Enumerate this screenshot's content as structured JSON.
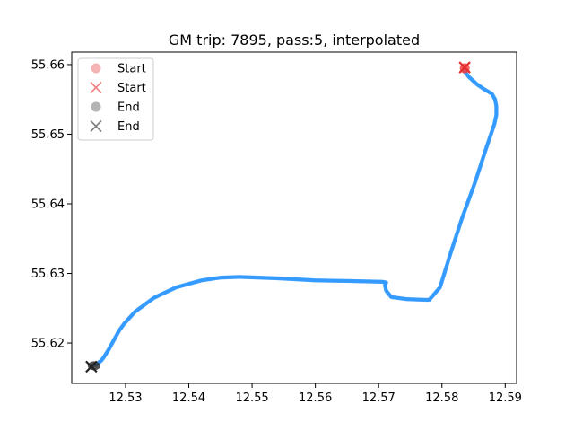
{
  "chart_data": {
    "type": "scatter",
    "title": "GM trip: 7895, pass:5, interpolated",
    "xlabel": "",
    "ylabel": "",
    "xlim": [
      12.5215,
      12.5918
    ],
    "ylim": [
      55.6142,
      55.6618
    ],
    "x_ticks": [
      "12.53",
      "12.54",
      "12.55",
      "12.56",
      "12.57",
      "12.58",
      "12.59"
    ],
    "y_ticks": [
      "55.62",
      "55.63",
      "55.64",
      "55.65",
      "55.66"
    ],
    "grid": false,
    "legend_position": "top-left",
    "legend": [
      {
        "label": "Start",
        "marker": "circle",
        "color": "#f08080"
      },
      {
        "label": "Start",
        "marker": "x",
        "color": "#f08080"
      },
      {
        "label": "End",
        "marker": "circle",
        "color": "#808080"
      },
      {
        "label": "End",
        "marker": "x",
        "color": "#808080"
      }
    ],
    "colors": {
      "track": "#3399ff",
      "track_faint": "#8cc4ff",
      "start_circle": "#ff3333",
      "start_x": "#e03030",
      "end_circle": "#333333",
      "end_x": "#222222"
    },
    "series": [
      {
        "x": [
          12.5835,
          12.5836,
          12.5843,
          12.5855,
          12.5866,
          12.5879,
          12.5884,
          12.5886,
          12.5886,
          12.5883,
          12.587,
          12.5852,
          12.5832,
          12.5814,
          12.5797,
          12.578,
          12.5776,
          12.5745,
          12.572,
          12.5712,
          12.571,
          12.5712,
          12.5705,
          12.566,
          12.56,
          12.554,
          12.548,
          12.545,
          12.542,
          12.538,
          12.5345,
          12.5315,
          12.5298,
          12.529,
          12.5282,
          12.5273,
          12.5266,
          12.5262,
          12.5255,
          12.525,
          12.5246
        ],
        "y": [
          55.6595,
          55.659,
          55.6582,
          55.6572,
          55.6565,
          55.6558,
          55.655,
          55.654,
          55.6528,
          55.6515,
          55.648,
          55.643,
          55.638,
          55.633,
          55.628,
          55.6262,
          55.6262,
          55.6263,
          55.6266,
          55.6275,
          55.6283,
          55.6287,
          55.6288,
          55.6289,
          55.629,
          55.6293,
          55.6295,
          55.6294,
          55.629,
          55.628,
          55.6265,
          55.6245,
          55.6228,
          55.6218,
          55.6205,
          55.619,
          55.618,
          55.6175,
          55.617,
          55.6168,
          55.6166
        ]
      }
    ],
    "start": {
      "x": 12.5836,
      "y": 55.6596
    },
    "end": {
      "x": 12.5246,
      "y": 55.6166
    }
  }
}
